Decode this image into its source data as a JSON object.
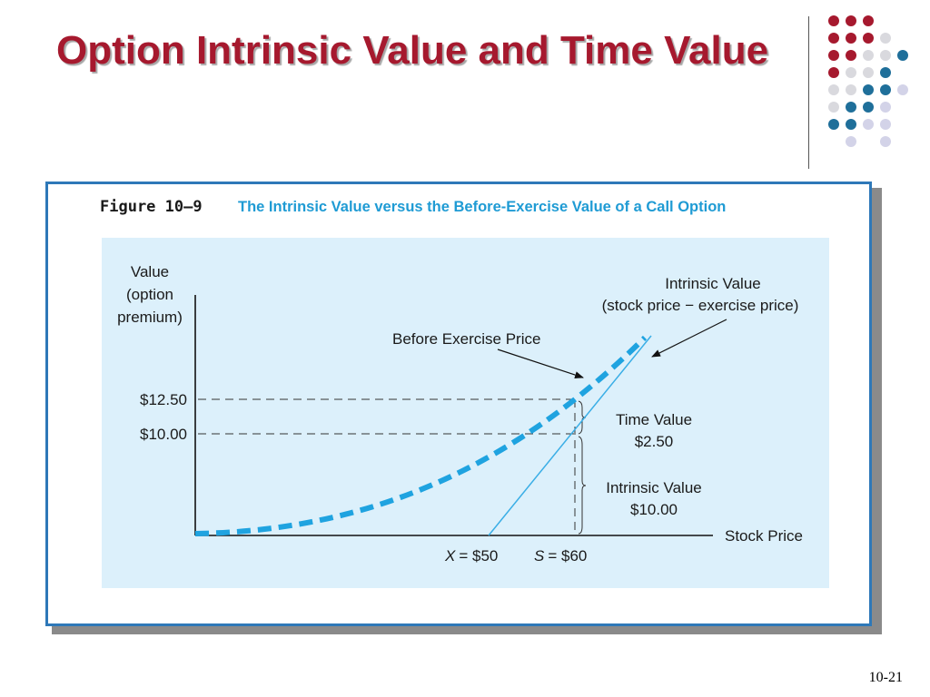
{
  "title": "Option Intrinsic Value and Time Value",
  "figure": {
    "number": "Figure 10–9",
    "caption": "The Intrinsic Value versus the Before-Exercise Value of a Call Option",
    "y_axis_label": [
      "Value",
      "(option",
      "premium)"
    ],
    "x_axis_label": "Stock Price",
    "ticks": {
      "y_upper": "$12.50",
      "y_lower": "$10.00"
    },
    "x_points": {
      "exercise_sym": "X",
      "exercise_val": "= $50",
      "stock_sym": "S",
      "stock_val": "= $60"
    },
    "labels": {
      "intrinsic_curve_line1": "Intrinsic Value",
      "intrinsic_curve_line2": "(stock price − exercise price)",
      "before_exercise": "Before Exercise Price",
      "time_value_line1": "Time Value",
      "time_value_line2": "$2.50",
      "intrinsic_value_line1": "Intrinsic Value",
      "intrinsic_value_line2": "$10.00"
    }
  },
  "page_number": "10-21",
  "colors": {
    "title": "#a6192e",
    "caption": "#1f9bd4",
    "plot_background": "#dcf0fb",
    "curve_dashed": "#1fa3e0",
    "intrinsic_line": "#3aaee6",
    "frame_border": "#2e78b8"
  }
}
